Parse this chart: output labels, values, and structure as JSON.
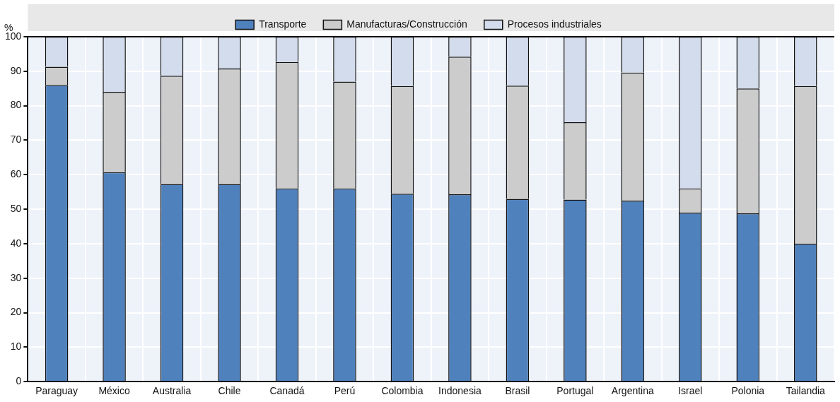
{
  "chart_data": {
    "type": "bar",
    "stacked": true,
    "ylabel": "%",
    "categories": [
      "Paraguay",
      "México",
      "Australia",
      "Chile",
      "Canadá",
      "Perú",
      "Colombia",
      "Indonesia",
      "Brasil",
      "Portugal",
      "Argentina",
      "Israel",
      "Polonia",
      "Tailandia"
    ],
    "series": [
      {
        "name": "Transporte",
        "color": "#4f81bd",
        "values": [
          86,
          60.7,
          57.3,
          57.3,
          56,
          56,
          54.5,
          54.3,
          53,
          52.8,
          52.5,
          49,
          48.8,
          40
        ]
      },
      {
        "name": "Manufacturas/Construcción",
        "color": "#cccccc",
        "values": [
          5.3,
          23.3,
          31.4,
          33.5,
          36.7,
          31,
          31.2,
          39.9,
          32.8,
          22.4,
          37.1,
          7,
          36.2,
          45.7
        ]
      },
      {
        "name": "Procesos industriales",
        "color": "#d3dcec",
        "values": [
          8.7,
          16,
          11.3,
          9.2,
          7.3,
          13,
          14.3,
          5.8,
          14.2,
          24.8,
          10.4,
          44,
          15,
          14.3
        ]
      }
    ],
    "ylim": [
      0,
      100
    ],
    "yticks": [
      0,
      10,
      20,
      30,
      40,
      50,
      60,
      70,
      80,
      90,
      100
    ],
    "grid": true,
    "legend": "top"
  }
}
